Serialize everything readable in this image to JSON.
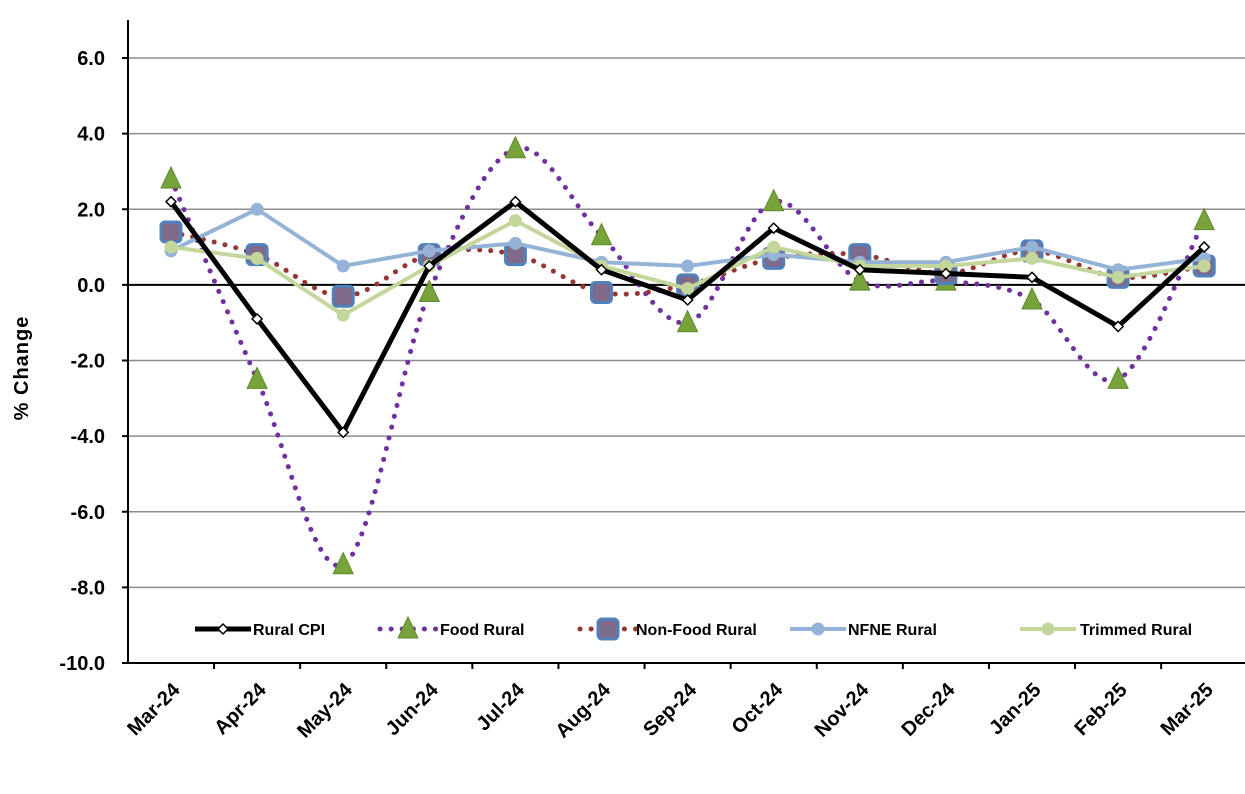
{
  "chart_data": {
    "type": "line",
    "title": "",
    "xlabel": "",
    "ylabel": "% Change",
    "ylim": [
      -10,
      6
    ],
    "yticks": [
      "6.0",
      "4.0",
      "2.0",
      "0.0",
      "-2.0",
      "-4.0",
      "-6.0",
      "-8.0",
      "-10.0"
    ],
    "ytick_values": [
      6,
      4,
      2,
      0,
      -2,
      -4,
      -6,
      -8,
      -10
    ],
    "grid": true,
    "legend_position": "bottom",
    "categories": [
      "Mar-24",
      "Apr-24",
      "May-24",
      "Jun-24",
      "Jul-24",
      "Aug-24",
      "Sep-24",
      "Oct-24",
      "Nov-24",
      "Dec-24",
      "Jan-25",
      "Feb-25",
      "Mar-25"
    ],
    "series": [
      {
        "name": "Rural CPI",
        "color": "#000000",
        "style": "solid-thick",
        "marker": "diamond",
        "values": [
          2.2,
          -0.9,
          -3.9,
          0.5,
          2.2,
          0.4,
          -0.4,
          1.5,
          0.4,
          0.3,
          0.2,
          -1.1,
          1.0
        ]
      },
      {
        "name": "Food Rural",
        "color": "#7030a0",
        "style": "dotted",
        "marker": "triangle",
        "values": [
          2.8,
          -2.5,
          -7.4,
          -0.2,
          3.6,
          1.3,
          -1.0,
          2.2,
          0.1,
          0.1,
          -0.4,
          -2.5,
          1.7
        ]
      },
      {
        "name": "Non-Food Rural",
        "color": "#943634",
        "style": "dotted",
        "marker": "square",
        "values": [
          1.4,
          0.8,
          -0.3,
          0.8,
          0.8,
          -0.2,
          0.0,
          0.7,
          0.8,
          0.3,
          0.9,
          0.2,
          0.5
        ]
      },
      {
        "name": "NFNE Rural",
        "color": "#95b3d7",
        "style": "solid",
        "marker": "circle",
        "values": [
          0.9,
          2.0,
          0.5,
          0.9,
          1.1,
          0.6,
          0.5,
          0.8,
          0.6,
          0.6,
          1.0,
          0.4,
          0.7
        ]
      },
      {
        "name": "Trimmed Rural",
        "color": "#c3d69b",
        "style": "solid",
        "marker": "circle",
        "values": [
          1.0,
          0.7,
          -0.8,
          0.5,
          1.7,
          0.5,
          -0.1,
          1.0,
          0.5,
          0.5,
          0.7,
          0.2,
          0.5
        ]
      }
    ]
  }
}
